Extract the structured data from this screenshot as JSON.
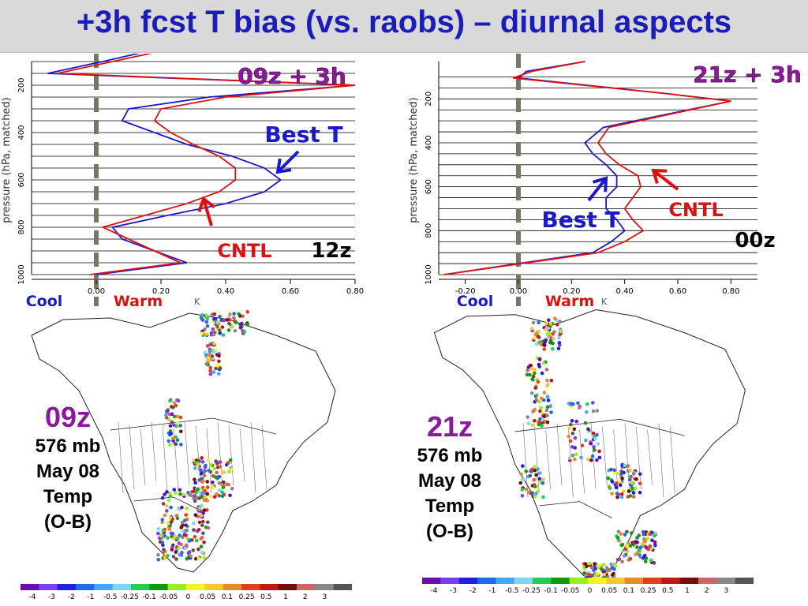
{
  "title": "+3h fcst T bias (vs. raobs) – diurnal aspects",
  "colors": {
    "best_t": "#1a1acc",
    "cntl": "#e01010",
    "title": "#1c1cb8",
    "time": "#8a1a9a",
    "zero_line": "#777766"
  },
  "chart_data": [
    {
      "type": "line",
      "title": "09z + 3h",
      "time_tag": "12z",
      "xlabel": "K",
      "ylabel": "pressure (hPa, matched)",
      "xlim": [
        -0.2,
        0.8
      ],
      "ylim": [
        1000,
        100
      ],
      "x_ticks": [
        "0.00",
        "0.20",
        "0.40",
        "0.60",
        "0.80"
      ],
      "y_ticks": [
        "200",
        "400",
        "600",
        "800",
        "1000"
      ],
      "cool_label": "Cool",
      "warm_label": "Warm",
      "series": [
        {
          "name": "Best T",
          "pressure": [
            50,
            100,
            150,
            200,
            250,
            300,
            350,
            400,
            450,
            500,
            550,
            600,
            650,
            700,
            750,
            800,
            850,
            900,
            950,
            1000
          ],
          "values": [
            0.18,
            0.02,
            -0.15,
            0.8,
            0.35,
            0.1,
            0.08,
            0.18,
            0.28,
            0.42,
            0.52,
            0.57,
            0.52,
            0.4,
            0.22,
            0.05,
            0.08,
            0.18,
            0.28,
            0.0
          ]
        },
        {
          "name": "CNTL",
          "pressure": [
            50,
            100,
            150,
            200,
            250,
            300,
            350,
            400,
            450,
            500,
            550,
            600,
            650,
            700,
            750,
            800,
            850,
            900,
            950,
            1000
          ],
          "values": [
            0.22,
            0.05,
            -0.12,
            0.8,
            0.4,
            0.2,
            0.18,
            0.23,
            0.3,
            0.38,
            0.43,
            0.43,
            0.38,
            0.28,
            0.15,
            0.02,
            0.1,
            0.18,
            0.26,
            -0.02
          ]
        }
      ]
    },
    {
      "type": "line",
      "title": "21z + 3h",
      "time_tag": "00z",
      "xlabel": "K",
      "ylabel": "pressure (hPa, matched)",
      "xlim": [
        -0.3,
        0.9
      ],
      "ylim": [
        1000,
        30
      ],
      "x_ticks": [
        "-0.20",
        "0.00",
        "0.20",
        "0.40",
        "0.60",
        "0.80"
      ],
      "y_ticks": [
        "200",
        "400",
        "600",
        "800",
        "1000"
      ],
      "cool_label": "Cool",
      "warm_label": "Warm",
      "series": [
        {
          "name": "Best T",
          "pressure": [
            30,
            75,
            105,
            175,
            210,
            330,
            400,
            450,
            500,
            550,
            600,
            650,
            700,
            750,
            800,
            850,
            900,
            1000
          ],
          "values": [
            0.25,
            0.03,
            0.0,
            0.55,
            0.8,
            0.32,
            0.25,
            0.28,
            0.33,
            0.37,
            0.37,
            0.33,
            0.33,
            0.37,
            0.4,
            0.35,
            0.28,
            -0.28
          ]
        },
        {
          "name": "CNTL",
          "pressure": [
            30,
            75,
            105,
            175,
            210,
            330,
            400,
            450,
            500,
            550,
            600,
            650,
            700,
            750,
            800,
            850,
            900,
            1000
          ],
          "values": [
            0.25,
            0.05,
            -0.02,
            0.55,
            0.8,
            0.34,
            0.3,
            0.33,
            0.38,
            0.45,
            0.46,
            0.43,
            0.4,
            0.43,
            0.47,
            0.4,
            0.3,
            -0.28
          ]
        }
      ]
    }
  ],
  "maps": [
    {
      "time": "09z",
      "level": "576 mb",
      "date": "May 08",
      "variable": "Temp",
      "kind": "(O-B)"
    },
    {
      "time": "21z",
      "level": "576 mb",
      "date": "May 08",
      "variable": "Temp",
      "kind": "(O-B)"
    }
  ],
  "colorbar": {
    "labels": [
      "-4",
      "-3",
      "-2",
      "-1",
      "-0.5",
      "-0.25",
      "-0.1",
      "-0.05",
      "0",
      "0.05",
      "0.1",
      "0.25",
      "0.5",
      "1",
      "2",
      "3"
    ],
    "colors": [
      "#6a0dad",
      "#7b3ff2",
      "#2020e0",
      "#1e6be8",
      "#45a6f5",
      "#7fd8f2",
      "#22cc55",
      "#119911",
      "#99ee22",
      "#f5f522",
      "#f5c830",
      "#e88a2a",
      "#e04020",
      "#c01818",
      "#701010",
      "#cc6666",
      "#888888",
      "#555555"
    ]
  }
}
